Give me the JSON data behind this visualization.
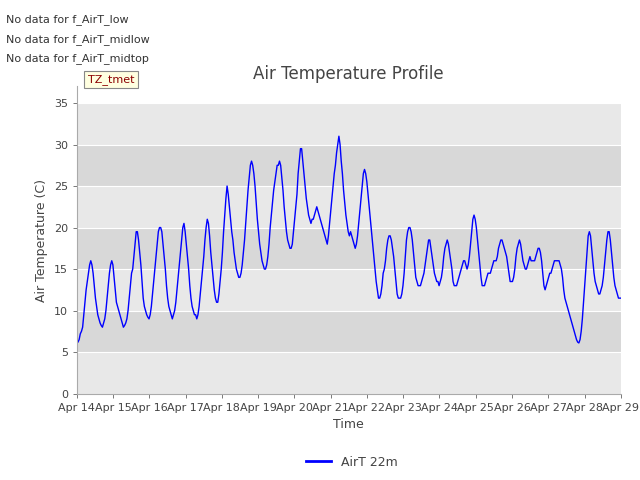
{
  "title": "Air Temperature Profile",
  "xlabel": "Time",
  "ylabel": "Air Temperature (C)",
  "y_ticks": [
    0,
    5,
    10,
    15,
    20,
    25,
    30,
    35
  ],
  "ylim": [
    0,
    37
  ],
  "line_color": "blue",
  "fig_bg_color": "#e8e8e8",
  "plot_bg_color": "#e0e0e0",
  "band_color_light": "#e8e8e8",
  "band_color_dark": "#d8d8d8",
  "legend_label": "AirT 22m",
  "x_tick_labels": [
    "Apr 14",
    "Apr 15",
    "Apr 16",
    "Apr 17",
    "Apr 18",
    "Apr 19",
    "Apr 20",
    "Apr 21",
    "Apr 22",
    "Apr 23",
    "Apr 24",
    "Apr 25",
    "Apr 26",
    "Apr 27",
    "Apr 28",
    "Apr 29"
  ],
  "annotations_top": [
    "No data for f_AirT_low",
    "No data for f_AirT_midlow",
    "No data for f_AirT_midtop"
  ],
  "tz_label": "TZ_tmet",
  "temperatures": [
    6.1,
    6.2,
    6.5,
    7.2,
    7.5,
    8.0,
    9.5,
    11.0,
    12.5,
    13.5,
    14.5,
    15.5,
    16.0,
    15.5,
    14.5,
    13.0,
    11.5,
    10.5,
    9.5,
    9.0,
    8.5,
    8.2,
    8.0,
    8.5,
    9.0,
    10.0,
    11.5,
    13.0,
    14.5,
    15.5,
    16.0,
    15.5,
    14.0,
    12.5,
    11.0,
    10.5,
    10.0,
    9.5,
    9.0,
    8.5,
    8.0,
    8.2,
    8.5,
    9.0,
    10.0,
    11.5,
    13.0,
    14.5,
    15.0,
    16.5,
    18.0,
    19.5,
    19.5,
    18.5,
    17.0,
    15.5,
    13.5,
    11.5,
    10.5,
    10.0,
    9.5,
    9.2,
    9.0,
    9.5,
    10.5,
    12.0,
    13.5,
    15.0,
    16.5,
    18.0,
    19.5,
    20.0,
    20.0,
    19.5,
    18.0,
    16.5,
    15.0,
    13.0,
    11.5,
    10.5,
    10.0,
    9.5,
    9.0,
    9.5,
    10.0,
    11.0,
    12.5,
    14.0,
    15.5,
    17.0,
    18.5,
    20.0,
    20.5,
    19.5,
    18.0,
    16.5,
    15.0,
    13.0,
    11.5,
    10.5,
    10.0,
    9.5,
    9.5,
    9.0,
    9.5,
    10.5,
    12.0,
    13.5,
    15.0,
    16.5,
    18.5,
    20.0,
    21.0,
    20.5,
    19.0,
    17.0,
    15.5,
    14.0,
    12.5,
    11.5,
    11.0,
    11.0,
    12.0,
    13.5,
    15.0,
    17.0,
    19.5,
    21.5,
    23.5,
    25.0,
    24.0,
    22.5,
    21.0,
    19.5,
    18.5,
    17.0,
    16.0,
    15.0,
    14.5,
    14.0,
    14.0,
    14.5,
    15.5,
    17.0,
    18.5,
    20.5,
    22.5,
    24.5,
    26.0,
    27.5,
    28.0,
    27.5,
    26.5,
    25.0,
    23.0,
    21.0,
    19.5,
    18.0,
    17.0,
    16.0,
    15.5,
    15.0,
    15.0,
    15.5,
    16.5,
    18.0,
    20.0,
    21.5,
    23.0,
    24.5,
    25.5,
    26.5,
    27.5,
    27.5,
    28.0,
    27.5,
    26.0,
    24.5,
    22.5,
    21.0,
    19.5,
    18.5,
    18.0,
    17.5,
    17.5,
    18.0,
    19.5,
    21.0,
    22.5,
    24.0,
    26.5,
    28.0,
    29.5,
    29.5,
    28.0,
    26.5,
    25.0,
    23.5,
    22.5,
    21.5,
    21.0,
    20.5,
    21.0,
    21.0,
    21.5,
    22.0,
    22.5,
    22.0,
    21.5,
    21.0,
    20.5,
    20.0,
    19.5,
    19.0,
    18.5,
    18.0,
    19.0,
    20.5,
    22.0,
    23.5,
    25.0,
    26.5,
    27.5,
    29.0,
    30.0,
    31.0,
    30.0,
    28.0,
    26.5,
    24.5,
    23.0,
    21.5,
    20.5,
    19.5,
    19.0,
    19.5,
    19.0,
    18.5,
    18.0,
    17.5,
    18.0,
    19.0,
    20.5,
    22.0,
    23.5,
    25.0,
    26.5,
    27.0,
    26.5,
    25.5,
    24.0,
    22.5,
    21.0,
    19.5,
    18.0,
    16.5,
    15.0,
    13.5,
    12.5,
    11.5,
    11.5,
    12.0,
    13.0,
    14.5,
    15.0,
    16.0,
    17.5,
    18.5,
    19.0,
    19.0,
    18.5,
    17.5,
    16.5,
    15.0,
    13.5,
    12.0,
    11.5,
    11.5,
    11.5,
    12.0,
    13.0,
    14.5,
    16.5,
    18.5,
    19.5,
    20.0,
    20.0,
    19.5,
    18.5,
    17.0,
    15.5,
    14.0,
    13.5,
    13.0,
    13.0,
    13.0,
    13.5,
    14.0,
    14.5,
    15.5,
    16.5,
    17.5,
    18.5,
    18.5,
    17.5,
    16.5,
    15.5,
    14.5,
    14.0,
    13.5,
    13.5,
    13.0,
    13.5,
    14.0,
    15.0,
    16.5,
    17.5,
    18.0,
    18.5,
    18.0,
    17.0,
    16.0,
    15.0,
    13.5,
    13.0,
    13.0,
    13.0,
    13.5,
    14.0,
    14.5,
    15.0,
    15.5,
    16.0,
    16.0,
    15.5,
    15.0,
    15.5,
    16.5,
    18.0,
    19.5,
    21.0,
    21.5,
    21.0,
    20.0,
    18.5,
    17.0,
    15.5,
    14.0,
    13.0,
    13.0,
    13.0,
    13.5,
    14.0,
    14.5,
    14.5,
    14.5,
    15.0,
    15.5,
    16.0,
    16.0,
    16.0,
    16.5,
    17.5,
    18.0,
    18.5,
    18.5,
    18.0,
    17.5,
    17.0,
    16.5,
    15.5,
    14.5,
    13.5,
    13.5,
    13.5,
    14.0,
    15.0,
    16.5,
    17.5,
    18.0,
    18.5,
    18.0,
    17.0,
    16.0,
    15.5,
    15.0,
    15.0,
    15.5,
    16.0,
    16.5,
    16.0,
    16.0,
    16.0,
    16.0,
    16.5,
    17.0,
    17.5,
    17.5,
    17.0,
    16.0,
    14.5,
    13.0,
    12.5,
    13.0,
    13.5,
    14.0,
    14.5,
    14.5,
    15.0,
    15.5,
    16.0,
    16.0,
    16.0,
    16.0,
    16.0,
    15.5,
    15.0,
    14.0,
    12.5,
    11.5,
    11.0,
    10.5,
    10.0,
    9.5,
    9.0,
    8.5,
    8.0,
    7.5,
    7.0,
    6.5,
    6.2,
    6.1,
    6.5,
    7.5,
    9.0,
    11.0,
    13.0,
    15.0,
    17.0,
    19.0,
    19.5,
    19.0,
    17.5,
    16.0,
    14.5,
    13.5,
    13.0,
    12.5,
    12.0,
    12.0,
    12.5,
    13.0,
    14.0,
    15.5,
    17.0,
    18.5,
    19.5,
    19.5,
    18.5,
    17.0,
    15.5,
    14.0,
    13.0,
    12.5,
    12.0,
    11.5,
    11.5,
    11.5
  ]
}
